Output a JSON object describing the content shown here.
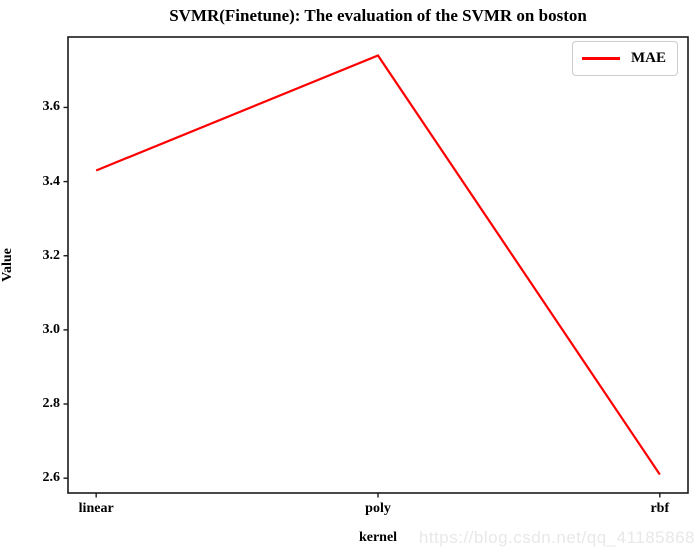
{
  "watermark": "https://blog.csdn.net/qq_41185868",
  "colors": {
    "line": "#ff0000",
    "axis": "#1a1a1a",
    "text": "#000000",
    "watermark": "#e8e8e8",
    "legend_border": "#cccccc"
  },
  "chart_data": {
    "type": "line",
    "title": "SVMR(Finetune): The evaluation of the SVMR on boston",
    "xlabel": "kernel",
    "ylabel": "Value",
    "categories": [
      "linear",
      "poly",
      "rbf"
    ],
    "series": [
      {
        "name": "MAE",
        "color": "#ff0000",
        "values": [
          3.43,
          3.74,
          2.61
        ]
      }
    ],
    "yticks": [
      2.6,
      2.8,
      3.0,
      3.2,
      3.4,
      3.6
    ],
    "ylim": [
      2.56,
      3.79
    ],
    "xlim": [
      -0.1,
      2.1
    ],
    "grid": false,
    "legend_position": "upper right"
  }
}
